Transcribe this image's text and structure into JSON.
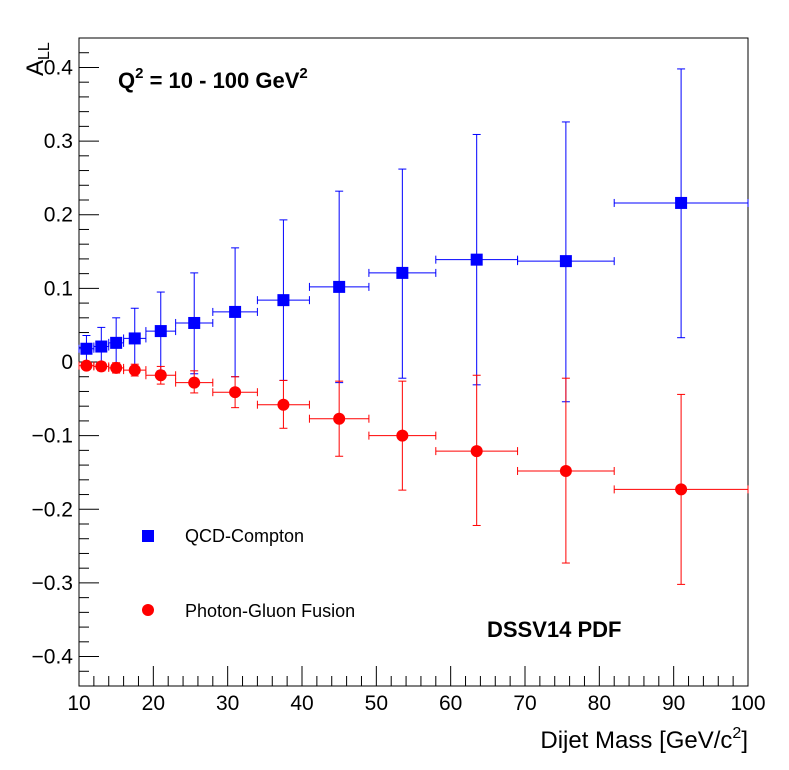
{
  "chart_data": {
    "type": "scatter",
    "title": "",
    "annotation_q2": {
      "prefix": "Q",
      "sup1": "2",
      "middle": " = 10 - 100 GeV",
      "sup2": "2"
    },
    "annotation_pdf": "DSSV14 PDF",
    "xlabel": {
      "main": "Dijet Mass [GeV/c",
      "sup": "2",
      "tail": "]"
    },
    "ylabel": {
      "main": "A",
      "sub": "LL"
    },
    "xlim": [
      10,
      100
    ],
    "ylim": [
      -0.44,
      0.44
    ],
    "x_ticks": [
      10,
      20,
      30,
      40,
      50,
      60,
      70,
      80,
      90,
      100
    ],
    "y_ticks": [
      -0.4,
      -0.3,
      -0.2,
      -0.1,
      0,
      0.1,
      0.2,
      0.3,
      0.4
    ],
    "y_tick_labels": [
      "−0.4",
      "−0.3",
      "−0.2",
      "−0.1",
      "0",
      "0.1",
      "0.2",
      "0.3",
      "0.4"
    ],
    "legend_placement": "bottom-left",
    "series": [
      {
        "name": "QCD-Compton",
        "color": "#0000ff",
        "marker": "square",
        "points": [
          {
            "x": 11.0,
            "xlo": 10.0,
            "xhi": 12.0,
            "y": 0.018,
            "ylo": 0.0,
            "yhi": 0.036
          },
          {
            "x": 13.0,
            "xlo": 12.0,
            "xhi": 14.0,
            "y": 0.021,
            "ylo": -0.004,
            "yhi": 0.047
          },
          {
            "x": 15.0,
            "xlo": 14.0,
            "xhi": 16.0,
            "y": 0.026,
            "ylo": -0.008,
            "yhi": 0.06
          },
          {
            "x": 17.5,
            "xlo": 16.0,
            "xhi": 19.0,
            "y": 0.032,
            "ylo": -0.01,
            "yhi": 0.073
          },
          {
            "x": 21.0,
            "xlo": 19.0,
            "xhi": 23.0,
            "y": 0.042,
            "ylo": -0.012,
            "yhi": 0.095
          },
          {
            "x": 25.5,
            "xlo": 23.0,
            "xhi": 28.0,
            "y": 0.053,
            "ylo": -0.016,
            "yhi": 0.121
          },
          {
            "x": 31.0,
            "xlo": 28.0,
            "xhi": 34.0,
            "y": 0.068,
            "ylo": -0.02,
            "yhi": 0.155
          },
          {
            "x": 37.5,
            "xlo": 34.0,
            "xhi": 41.0,
            "y": 0.084,
            "ylo": -0.025,
            "yhi": 0.193
          },
          {
            "x": 45.0,
            "xlo": 41.0,
            "xhi": 49.0,
            "y": 0.102,
            "ylo": -0.028,
            "yhi": 0.232
          },
          {
            "x": 53.5,
            "xlo": 49.0,
            "xhi": 58.0,
            "y": 0.121,
            "ylo": -0.022,
            "yhi": 0.262
          },
          {
            "x": 63.5,
            "xlo": 58.0,
            "xhi": 69.0,
            "y": 0.139,
            "ylo": -0.031,
            "yhi": 0.309
          },
          {
            "x": 75.5,
            "xlo": 69.0,
            "xhi": 82.0,
            "y": 0.137,
            "ylo": -0.054,
            "yhi": 0.326
          },
          {
            "x": 91.0,
            "xlo": 82.0,
            "xhi": 100.0,
            "y": 0.216,
            "ylo": 0.033,
            "yhi": 0.398
          }
        ]
      },
      {
        "name": "Photon-Gluon Fusion",
        "color": "#ff0000",
        "marker": "circle",
        "points": [
          {
            "x": 11.0,
            "xlo": 10.0,
            "xhi": 12.0,
            "y": -0.005,
            "ylo": -0.01,
            "yhi": 0.0
          },
          {
            "x": 13.0,
            "xlo": 12.0,
            "xhi": 14.0,
            "y": -0.006,
            "ylo": -0.012,
            "yhi": 0.0
          },
          {
            "x": 15.0,
            "xlo": 14.0,
            "xhi": 16.0,
            "y": -0.008,
            "ylo": -0.015,
            "yhi": -0.001
          },
          {
            "x": 17.5,
            "xlo": 16.0,
            "xhi": 19.0,
            "y": -0.011,
            "ylo": -0.019,
            "yhi": -0.003
          },
          {
            "x": 21.0,
            "xlo": 19.0,
            "xhi": 23.0,
            "y": -0.018,
            "ylo": -0.03,
            "yhi": -0.006
          },
          {
            "x": 25.5,
            "xlo": 23.0,
            "xhi": 28.0,
            "y": -0.028,
            "ylo": -0.042,
            "yhi": -0.012
          },
          {
            "x": 31.0,
            "xlo": 28.0,
            "xhi": 34.0,
            "y": -0.041,
            "ylo": -0.062,
            "yhi": -0.02
          },
          {
            "x": 37.5,
            "xlo": 34.0,
            "xhi": 41.0,
            "y": -0.058,
            "ylo": -0.09,
            "yhi": -0.025
          },
          {
            "x": 45.0,
            "xlo": 41.0,
            "xhi": 49.0,
            "y": -0.077,
            "ylo": -0.128,
            "yhi": -0.026
          },
          {
            "x": 53.5,
            "xlo": 49.0,
            "xhi": 58.0,
            "y": -0.1,
            "ylo": -0.174,
            "yhi": -0.026
          },
          {
            "x": 63.5,
            "xlo": 58.0,
            "xhi": 69.0,
            "y": -0.121,
            "ylo": -0.222,
            "yhi": -0.018
          },
          {
            "x": 75.5,
            "xlo": 69.0,
            "xhi": 82.0,
            "y": -0.148,
            "ylo": -0.273,
            "yhi": -0.022
          },
          {
            "x": 91.0,
            "xlo": 82.0,
            "xhi": 100.0,
            "y": -0.173,
            "ylo": -0.302,
            "yhi": -0.044
          }
        ]
      }
    ]
  }
}
